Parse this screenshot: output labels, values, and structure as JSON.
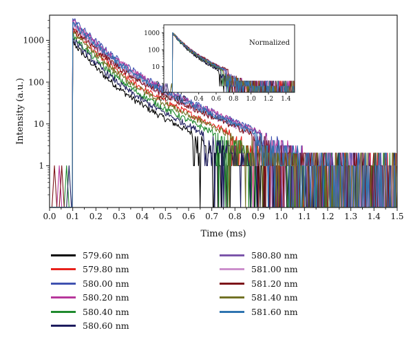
{
  "chart_data": [
    {
      "type": "line",
      "title": "",
      "xlabel": "Time (ms)",
      "ylabel": "Intensity (a.u.)",
      "xlim": [
        0.0,
        1.5
      ],
      "ylim": [
        0.1,
        4000
      ],
      "yscale": "log",
      "grid": false,
      "legend_position": "below",
      "x_ticks": [
        "0.0",
        "0.1",
        "0.2",
        "0.3",
        "0.4",
        "0.5",
        "0.6",
        "0.7",
        "0.8",
        "0.9",
        "1.0",
        "1.1",
        "1.2",
        "1.3",
        "1.4",
        "1.5"
      ],
      "y_ticks": [
        "1",
        "10",
        "100",
        "1000"
      ],
      "series": [
        {
          "name": "579.60 nm",
          "color": "#000000",
          "peak": 900,
          "tau": 0.06
        },
        {
          "name": "579.80 nm",
          "color": "#e8211b",
          "peak": 1800,
          "tau": 0.066
        },
        {
          "name": "580.00 nm",
          "color": "#3f51b0",
          "peak": 3300,
          "tau": 0.068
        },
        {
          "name": "580.20 nm",
          "color": "#b7379b",
          "peak": 2900,
          "tau": 0.07
        },
        {
          "name": "580.40 nm",
          "color": "#1f8a2e",
          "peak": 1300,
          "tau": 0.064
        },
        {
          "name": "580.60 nm",
          "color": "#1d1c5e",
          "peak": 1100,
          "tau": 0.062
        },
        {
          "name": "580.80 nm",
          "color": "#7b55aa",
          "peak": 2500,
          "tau": 0.07
        },
        {
          "name": "581.00 nm",
          "color": "#cc8fcc",
          "peak": 2200,
          "tau": 0.071
        },
        {
          "name": "581.20 nm",
          "color": "#7d1218",
          "peak": 2000,
          "tau": 0.072
        },
        {
          "name": "581.40 nm",
          "color": "#727224",
          "peak": 1600,
          "tau": 0.066
        },
        {
          "name": "581.60 nm",
          "color": "#2f74b0",
          "peak": 2700,
          "tau": 0.069
        }
      ],
      "peak_time": 0.1
    },
    {
      "type": "line",
      "title": "",
      "annotation": "Normalized",
      "xlim": [
        0.0,
        1.5
      ],
      "ylim": [
        0.3,
        3000
      ],
      "yscale": "log",
      "x_ticks": [
        "0.0",
        "0.2",
        "0.4",
        "0.6",
        "0.8",
        "1.0",
        "1.2",
        "1.4"
      ],
      "y_ticks": [
        "1",
        "10",
        "100",
        "1000"
      ],
      "normalized_peak": 1000
    }
  ]
}
